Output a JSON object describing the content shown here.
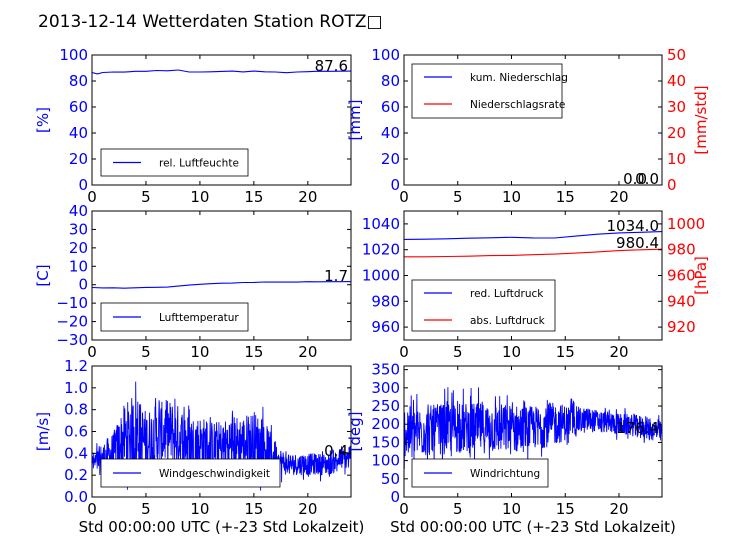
{
  "title": "2013-12-14 Wetterdaten Station ROTZ□",
  "colors": {
    "blue": "#0000ff",
    "red": "#ff0000",
    "axis": "#000000",
    "text": "#000000"
  },
  "chart_data": [
    {
      "type": "line",
      "ylabel": "[%]",
      "ylim": [
        0,
        100
      ],
      "yticks": [
        "0",
        "20",
        "40",
        "60",
        "80",
        "100"
      ],
      "xlim": [
        0,
        24
      ],
      "xticks": [
        "0",
        "5",
        "10",
        "15",
        "20"
      ],
      "xlabel": "",
      "legend": [
        "rel. Luftfeuchte"
      ],
      "legend_loc": "lower-left",
      "annotations": [
        "87.6"
      ],
      "series": [
        {
          "name": "rel. Luftfeuchte",
          "color": "#0000ff",
          "axis": "left",
          "x": [
            0,
            0.5,
            1,
            2,
            3,
            4,
            5,
            6,
            7,
            8,
            9,
            10,
            11,
            12,
            13,
            14,
            15,
            16,
            17,
            18,
            19,
            20,
            21,
            22,
            23,
            24
          ],
          "y": [
            86.5,
            85.5,
            86.5,
            87,
            87,
            87.5,
            87.5,
            88,
            88,
            88.5,
            87,
            87,
            87,
            87.5,
            87.5,
            87,
            87.5,
            87,
            87,
            86.5,
            87,
            87,
            87.5,
            87.5,
            87.5,
            87.6
          ]
        }
      ]
    },
    {
      "type": "line",
      "ylabel": "[mm]",
      "ylabel2": "[mm/std]",
      "ylim": [
        0,
        100
      ],
      "yticks": [
        "0",
        "20",
        "40",
        "60",
        "80",
        "100"
      ],
      "ylim2": [
        0,
        50
      ],
      "yticks2": [
        "0",
        "10",
        "20",
        "30",
        "40",
        "50"
      ],
      "xlim": [
        0,
        24
      ],
      "xticks": [
        "0",
        "5",
        "10",
        "15",
        "20"
      ],
      "xlabel": "",
      "legend": [
        "kum. Niederschlag",
        "Niederschlagsrate"
      ],
      "legend_loc": "upper-left",
      "annotations": [
        "0.0",
        "0.0"
      ],
      "series": [
        {
          "name": "kum. Niederschlag",
          "color": "#0000ff",
          "axis": "left",
          "x": [
            0,
            24
          ],
          "y": [
            0,
            0
          ]
        },
        {
          "name": "Niederschlagsrate",
          "color": "#ff0000",
          "axis": "right",
          "x": [
            0,
            24
          ],
          "y": [
            0,
            0
          ]
        }
      ]
    },
    {
      "type": "line",
      "ylabel": "[C]",
      "ylim": [
        -30,
        40
      ],
      "yticks": [
        "−30",
        "−20",
        "−10",
        "0",
        "10",
        "20",
        "30",
        "40"
      ],
      "xlim": [
        0,
        24
      ],
      "xticks": [
        "0",
        "5",
        "10",
        "15",
        "20"
      ],
      "xlabel": "",
      "legend": [
        "Lufttemperatur"
      ],
      "legend_loc": "lower-left",
      "annotations": [
        "1.7"
      ],
      "series": [
        {
          "name": "Lufttemperatur",
          "color": "#0000ff",
          "axis": "left",
          "x": [
            0,
            1,
            2,
            3,
            4,
            5,
            6,
            7,
            8,
            9,
            10,
            11,
            12,
            13,
            14,
            15,
            16,
            17,
            18,
            19,
            20,
            21,
            22,
            23,
            24
          ],
          "y": [
            -1.5,
            -1.8,
            -1.7,
            -1.8,
            -1.6,
            -1.5,
            -1.4,
            -1.2,
            -0.8,
            -0.3,
            0.2,
            0.5,
            0.8,
            1.0,
            1.2,
            1.3,
            1.4,
            1.4,
            1.5,
            1.5,
            1.6,
            1.6,
            1.7,
            1.7,
            1.7
          ]
        }
      ]
    },
    {
      "type": "line",
      "ylabel": "",
      "ylabel2": "[hPa]",
      "ylim": [
        950,
        1050
      ],
      "yticks": [
        "960",
        "980",
        "1000",
        "1020",
        "1040"
      ],
      "ylim2": [
        910,
        1010
      ],
      "yticks2": [
        "920",
        "940",
        "960",
        "980",
        "1000"
      ],
      "xlim": [
        0,
        24
      ],
      "xticks": [
        "0",
        "5",
        "10",
        "15",
        "20"
      ],
      "xlabel": "",
      "legend": [
        "red. Luftdruck",
        "abs. Luftdruck"
      ],
      "legend_loc": "lower-left",
      "annotations": [
        "1034.0",
        "980.4"
      ],
      "series": [
        {
          "name": "red. Luftdruck",
          "color": "#0000ff",
          "axis": "left",
          "x": [
            0,
            2,
            4,
            6,
            8,
            10,
            12,
            14,
            16,
            18,
            20,
            22,
            24
          ],
          "y": [
            1028,
            1028,
            1028.5,
            1028.8,
            1029.3,
            1029.6,
            1029.2,
            1029,
            1030.5,
            1032,
            1033,
            1033.6,
            1034
          ]
        },
        {
          "name": "abs. Luftdruck",
          "color": "#ff0000",
          "axis": "right",
          "x": [
            0,
            2,
            4,
            6,
            8,
            10,
            12,
            14,
            16,
            18,
            20,
            22,
            24
          ],
          "y": [
            974.5,
            974.5,
            974.6,
            974.9,
            975.3,
            975.6,
            976,
            976.5,
            977.3,
            978.3,
            979.2,
            980,
            980.4
          ]
        }
      ]
    },
    {
      "type": "line",
      "ylabel": "[m/s]",
      "ylim": [
        0,
        1.2
      ],
      "yticks": [
        "0.0",
        "0.2",
        "0.4",
        "0.6",
        "0.8",
        "1.0",
        "1.2"
      ],
      "xlim": [
        0,
        24
      ],
      "xticks": [
        "0",
        "5",
        "10",
        "15",
        "20"
      ],
      "xlabel": "Std 00:00:00 UTC (+-23 Std Lokalzeit)",
      "legend": [
        "Windgeschwindigkeit"
      ],
      "legend_loc": "lower-left",
      "annotations": [
        "0.4"
      ],
      "series": [
        {
          "name": "Windgeschwindigkeit",
          "color": "#0000ff",
          "axis": "left",
          "x": [
            0,
            2,
            3,
            4,
            5,
            6,
            7,
            8,
            9,
            10,
            11,
            12,
            13,
            14,
            15,
            16,
            17,
            18,
            19,
            20,
            21,
            22,
            23,
            24
          ],
          "y": [
            0.3,
            0.4,
            0.55,
            0.6,
            0.5,
            0.55,
            0.6,
            0.55,
            0.5,
            0.5,
            0.45,
            0.45,
            0.5,
            0.5,
            0.5,
            0.45,
            0.35,
            0.3,
            0.3,
            0.3,
            0.3,
            0.3,
            0.35,
            0.35
          ],
          "spread": [
            0.1,
            0.2,
            0.3,
            0.35,
            0.3,
            0.3,
            0.3,
            0.3,
            0.25,
            0.25,
            0.25,
            0.25,
            0.25,
            0.25,
            0.3,
            0.25,
            0.15,
            0.1,
            0.1,
            0.1,
            0.1,
            0.1,
            0.1,
            0.1
          ]
        }
      ]
    },
    {
      "type": "line",
      "ylabel": "[deg]",
      "ylim": [
        0,
        360
      ],
      "yticks": [
        "0",
        "50",
        "100",
        "150",
        "200",
        "250",
        "300",
        "350"
      ],
      "xlim": [
        0,
        24
      ],
      "xticks": [
        "0",
        "5",
        "10",
        "15",
        "20"
      ],
      "xlabel": "Std 00:00:00 UTC (+-23 Std Lokalzeit)",
      "legend": [
        "Windrichtung"
      ],
      "legend_loc": "lower-left",
      "annotations": [
        "176.4"
      ],
      "series": [
        {
          "name": "Windrichtung",
          "color": "#0000ff",
          "axis": "left",
          "x": [
            0,
            2,
            4,
            6,
            8,
            10,
            12,
            14,
            16,
            18,
            20,
            22,
            24
          ],
          "y": [
            180,
            180,
            190,
            190,
            190,
            185,
            190,
            200,
            210,
            210,
            200,
            195,
            176
          ],
          "spread": [
            70,
            70,
            70,
            70,
            70,
            70,
            60,
            60,
            40,
            30,
            30,
            30,
            30
          ]
        }
      ]
    }
  ]
}
